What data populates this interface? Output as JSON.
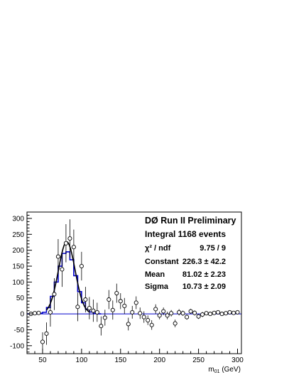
{
  "chart_data": {
    "type": "scatter",
    "title": "DØ Run II Preliminary",
    "xlabel": "m",
    "xlabel_sub": "01",
    "xlabel_unit": " (GeV)",
    "xlim": [
      30,
      305
    ],
    "ylim": [
      -125,
      320
    ],
    "x_ticks": [
      50,
      100,
      150,
      200,
      250,
      300
    ],
    "y_ticks": [
      -100,
      -50,
      0,
      50,
      100,
      150,
      200,
      250,
      300
    ],
    "grid": false,
    "stats": {
      "integral": "Integral 1168 events",
      "chi2_label": "χ² / ndf",
      "chi2_value": "9.75 / 9",
      "constant_label": "Constant",
      "constant_value": "226.3 ± 42.2",
      "mean_label": "Mean",
      "mean_value": "81.02 ± 2.23",
      "sigma_label": "Sigma",
      "sigma_value": "10.73 ± 2.09"
    },
    "gauss_fit": {
      "constant": 226.3,
      "mean": 81.02,
      "sigma": 10.73,
      "range": [
        55,
        110
      ]
    },
    "points": [
      {
        "x": 35,
        "y": 0,
        "err": 5
      },
      {
        "x": 40,
        "y": 2,
        "err": 5
      },
      {
        "x": 45,
        "y": 3,
        "err": 5
      },
      {
        "x": 50,
        "y": -88,
        "err": 30
      },
      {
        "x": 55,
        "y": -62,
        "err": 35
      },
      {
        "x": 60,
        "y": 5,
        "err": 45
      },
      {
        "x": 65,
        "y": 62,
        "err": 50
      },
      {
        "x": 70,
        "y": 180,
        "err": 55
      },
      {
        "x": 75,
        "y": 140,
        "err": 55
      },
      {
        "x": 80,
        "y": 222,
        "err": 60
      },
      {
        "x": 85,
        "y": 237,
        "err": 60
      },
      {
        "x": 90,
        "y": 210,
        "err": 55
      },
      {
        "x": 95,
        "y": 22,
        "err": 45
      },
      {
        "x": 100,
        "y": 150,
        "err": 45
      },
      {
        "x": 105,
        "y": 45,
        "err": 40
      },
      {
        "x": 110,
        "y": 18,
        "err": 35
      },
      {
        "x": 115,
        "y": 10,
        "err": 35
      },
      {
        "x": 120,
        "y": 5,
        "err": 30
      },
      {
        "x": 125,
        "y": -38,
        "err": 30
      },
      {
        "x": 130,
        "y": -12,
        "err": 25
      },
      {
        "x": 135,
        "y": 45,
        "err": 30
      },
      {
        "x": 140,
        "y": 12,
        "err": 30
      },
      {
        "x": 145,
        "y": 65,
        "err": 30
      },
      {
        "x": 150,
        "y": 40,
        "err": 25
      },
      {
        "x": 155,
        "y": 25,
        "err": 25
      },
      {
        "x": 160,
        "y": -32,
        "err": 20
      },
      {
        "x": 165,
        "y": 5,
        "err": 20
      },
      {
        "x": 170,
        "y": 35,
        "err": 20
      },
      {
        "x": 175,
        "y": 2,
        "err": 18
      },
      {
        "x": 180,
        "y": -10,
        "err": 18
      },
      {
        "x": 185,
        "y": -20,
        "err": 15
      },
      {
        "x": 190,
        "y": -35,
        "err": 15
      },
      {
        "x": 195,
        "y": 15,
        "err": 15
      },
      {
        "x": 200,
        "y": -5,
        "err": 12
      },
      {
        "x": 205,
        "y": 8,
        "err": 12
      },
      {
        "x": 210,
        "y": -5,
        "err": 12
      },
      {
        "x": 215,
        "y": 2,
        "err": 10
      },
      {
        "x": 220,
        "y": -30,
        "err": 12
      },
      {
        "x": 225,
        "y": 5,
        "err": 10
      },
      {
        "x": 230,
        "y": 2,
        "err": 8
      },
      {
        "x": 235,
        "y": -10,
        "err": 8
      },
      {
        "x": 240,
        "y": 8,
        "err": 8
      },
      {
        "x": 245,
        "y": 3,
        "err": 8
      },
      {
        "x": 250,
        "y": -8,
        "err": 8
      },
      {
        "x": 255,
        "y": -2,
        "err": 8
      },
      {
        "x": 260,
        "y": 2,
        "err": 6
      },
      {
        "x": 265,
        "y": 0,
        "err": 6
      },
      {
        "x": 270,
        "y": 3,
        "err": 6
      },
      {
        "x": 275,
        "y": 5,
        "err": 6
      },
      {
        "x": 280,
        "y": 0,
        "err": 6
      },
      {
        "x": 285,
        "y": 2,
        "err": 5
      },
      {
        "x": 290,
        "y": 5,
        "err": 5
      },
      {
        "x": 295,
        "y": 3,
        "err": 5
      },
      {
        "x": 300,
        "y": 5,
        "err": 5
      }
    ],
    "histogram": {
      "bin_width": 5,
      "bins": [
        {
          "x": 30,
          "y": 0
        },
        {
          "x": 35,
          "y": 0
        },
        {
          "x": 40,
          "y": 0
        },
        {
          "x": 45,
          "y": 2
        },
        {
          "x": 50,
          "y": 5
        },
        {
          "x": 55,
          "y": 20
        },
        {
          "x": 60,
          "y": 55
        },
        {
          "x": 65,
          "y": 100
        },
        {
          "x": 70,
          "y": 150
        },
        {
          "x": 75,
          "y": 190
        },
        {
          "x": 80,
          "y": 195
        },
        {
          "x": 85,
          "y": 170
        },
        {
          "x": 90,
          "y": 120
        },
        {
          "x": 95,
          "y": 70
        },
        {
          "x": 100,
          "y": 35
        },
        {
          "x": 105,
          "y": 15
        },
        {
          "x": 110,
          "y": 6
        },
        {
          "x": 115,
          "y": 2
        },
        {
          "x": 120,
          "y": 0
        }
      ]
    },
    "colors": {
      "histogram": "#0000cc",
      "fit": "#000000",
      "baseline": "#0000cc",
      "points": "#000000"
    }
  }
}
